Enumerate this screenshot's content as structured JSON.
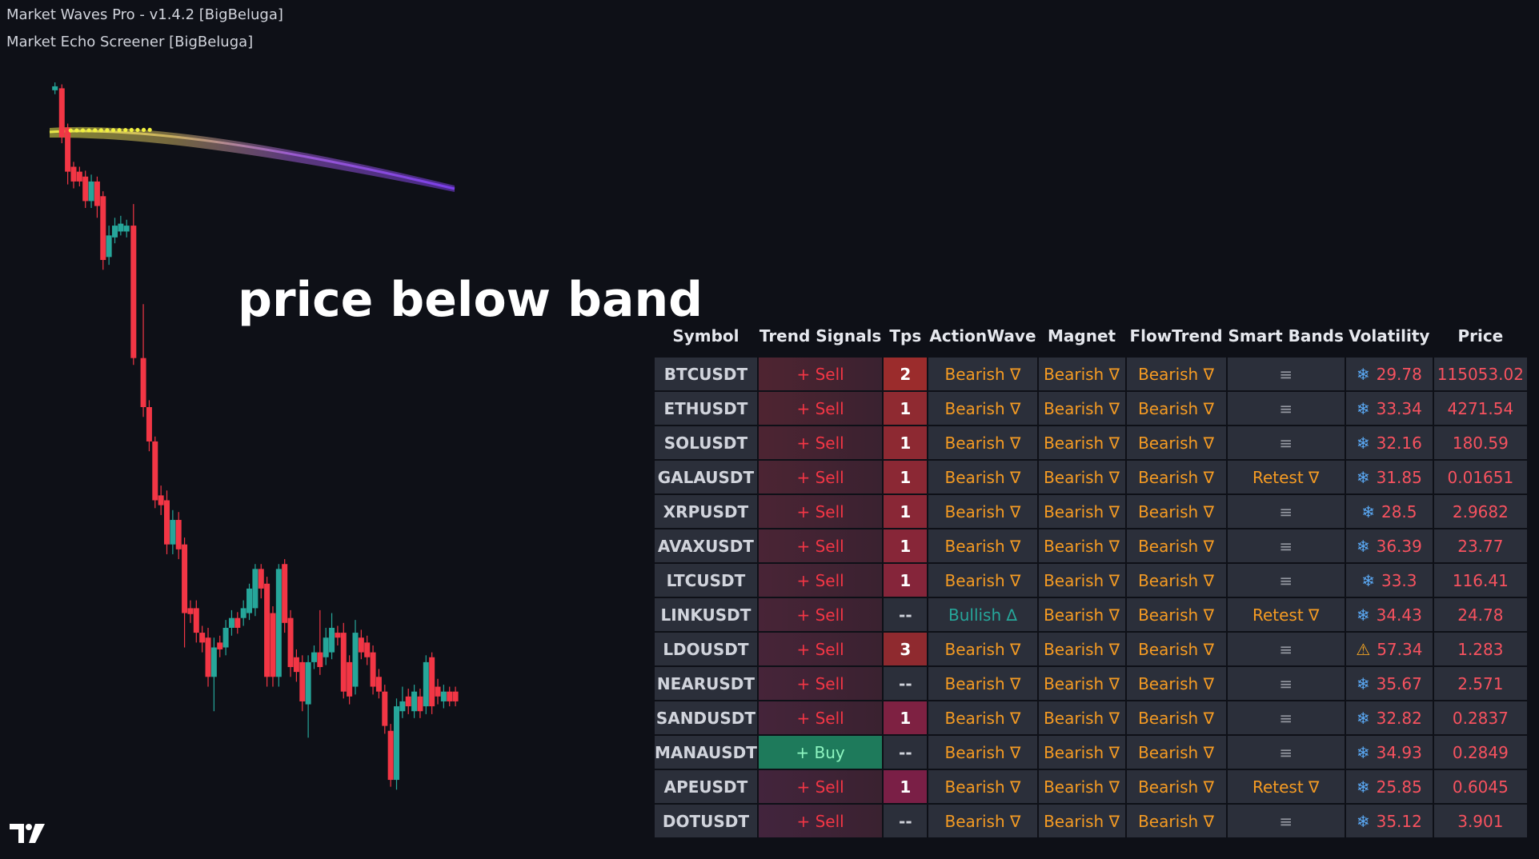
{
  "header": {
    "lines": [
      "Market Waves Pro - v1.4.2 [BigBeluga]",
      "Market Echo Screener [BigBeluga]"
    ]
  },
  "annotation": "price below band",
  "table": {
    "columns": [
      "Symbol",
      "Trend Signals",
      "Tps",
      "ActionWave",
      "Magnet",
      "FlowTrend",
      "Smart Bands",
      "Volatility",
      "Price"
    ],
    "rows": [
      {
        "cells": [
          "BTCUSDT",
          "+ Sell",
          "2",
          "Bearish ∇",
          "Bearish ∇",
          "Bearish ∇",
          "≡",
          "❄",
          "29.78",
          "115053.02"
        ],
        "signal_fill": "#4f2431",
        "tps_fill": "#9b2c2c",
        "colors": [
          "#d1d4dc",
          "#f23645",
          "#fff",
          "#f59b23",
          "#f59b23",
          "#f59b23",
          "#9598a1",
          "#5aa9f5",
          "#f7525f",
          "#f7525f"
        ]
      },
      {
        "cells": [
          "ETHUSDT",
          "+ Sell",
          "1",
          "Bearish ∇",
          "Bearish ∇",
          "Bearish ∇",
          "≡",
          "❄",
          "33.34",
          "4271.54"
        ],
        "signal_fill": "#4f2431",
        "tps_fill": "#8f2a31",
        "colors": [
          "#d1d4dc",
          "#f23645",
          "#fff",
          "#f59b23",
          "#f59b23",
          "#f59b23",
          "#9598a1",
          "#5aa9f5",
          "#f7525f",
          "#f7525f"
        ]
      },
      {
        "cells": [
          "SOLUSDT",
          "+ Sell",
          "1",
          "Bearish ∇",
          "Bearish ∇",
          "Bearish ∇",
          "≡",
          "❄",
          "32.16",
          "180.59"
        ],
        "signal_fill": "#4d2432",
        "tps_fill": "#8d2932",
        "colors": [
          "#d1d4dc",
          "#f23645",
          "#fff",
          "#f59b23",
          "#f59b23",
          "#f59b23",
          "#9598a1",
          "#5aa9f5",
          "#f7525f",
          "#f7525f"
        ]
      },
      {
        "cells": [
          "GALAUSDT",
          "+ Sell",
          "1",
          "Bearish ∇",
          "Bearish ∇",
          "Bearish ∇",
          "Retest ∇",
          "❄",
          "31.85",
          "0.01651"
        ],
        "signal_fill": "#4c2433",
        "tps_fill": "#8b2834",
        "colors": [
          "#d1d4dc",
          "#f23645",
          "#fff",
          "#f59b23",
          "#f59b23",
          "#f59b23",
          "#f59b23",
          "#5aa9f5",
          "#f7525f",
          "#f7525f"
        ]
      },
      {
        "cells": [
          "XRPUSDT",
          "+ Sell",
          "1",
          "Bearish ∇",
          "Bearish ∇",
          "Bearish ∇",
          "≡",
          "❄",
          "28.5",
          "2.9682"
        ],
        "signal_fill": "#4b2434",
        "tps_fill": "#892736",
        "colors": [
          "#d1d4dc",
          "#f23645",
          "#fff",
          "#f59b23",
          "#f59b23",
          "#f59b23",
          "#9598a1",
          "#5aa9f5",
          "#f7525f",
          "#f7525f"
        ]
      },
      {
        "cells": [
          "AVAXUSDT",
          "+ Sell",
          "1",
          "Bearish ∇",
          "Bearish ∇",
          "Bearish ∇",
          "≡",
          "❄",
          "36.39",
          "23.77"
        ],
        "signal_fill": "#4a2435",
        "tps_fill": "#872638",
        "colors": [
          "#d1d4dc",
          "#f23645",
          "#fff",
          "#f59b23",
          "#f59b23",
          "#f59b23",
          "#9598a1",
          "#5aa9f5",
          "#f7525f",
          "#f7525f"
        ]
      },
      {
        "cells": [
          "LTCUSDT",
          "+ Sell",
          "1",
          "Bearish ∇",
          "Bearish ∇",
          "Bearish ∇",
          "≡",
          "❄",
          "33.3",
          "116.41"
        ],
        "signal_fill": "#492436",
        "tps_fill": "#85253a",
        "colors": [
          "#d1d4dc",
          "#f23645",
          "#fff",
          "#f59b23",
          "#f59b23",
          "#f59b23",
          "#9598a1",
          "#5aa9f5",
          "#f7525f",
          "#f7525f"
        ]
      },
      {
        "cells": [
          "LINKUSDT",
          "+ Sell",
          "--",
          "Bullish ∆",
          "Bearish ∇",
          "Bearish ∇",
          "Retest ∇",
          "❄",
          "34.43",
          "24.78"
        ],
        "signal_fill": "#482437",
        "tps_fill": "#2b2f3a",
        "colors": [
          "#d1d4dc",
          "#f23645",
          "#d1d4dc",
          "#26a69a",
          "#f59b23",
          "#f59b23",
          "#f59b23",
          "#5aa9f5",
          "#f7525f",
          "#f7525f"
        ]
      },
      {
        "cells": [
          "LDOUSDT",
          "+ Sell",
          "3",
          "Bearish ∇",
          "Bearish ∇",
          "Bearish ∇",
          "≡",
          "⚠",
          "57.34",
          "1.283"
        ],
        "signal_fill": "#472438",
        "tps_fill": "#8f2a2f",
        "colors": [
          "#d1d4dc",
          "#f23645",
          "#fff",
          "#f59b23",
          "#f59b23",
          "#f59b23",
          "#9598a1",
          "#f5a623",
          "#f7525f",
          "#f7525f"
        ]
      },
      {
        "cells": [
          "NEARUSDT",
          "+ Sell",
          "--",
          "Bearish ∇",
          "Bearish ∇",
          "Bearish ∇",
          "≡",
          "❄",
          "35.67",
          "2.571"
        ],
        "signal_fill": "#462439",
        "tps_fill": "#2b2f3a",
        "colors": [
          "#d1d4dc",
          "#f23645",
          "#d1d4dc",
          "#f59b23",
          "#f59b23",
          "#f59b23",
          "#9598a1",
          "#5aa9f5",
          "#f7525f",
          "#f7525f"
        ]
      },
      {
        "cells": [
          "SANDUSDT",
          "+ Sell",
          "1",
          "Bearish ∇",
          "Bearish ∇",
          "Bearish ∇",
          "≡",
          "❄",
          "32.82",
          "0.2837"
        ],
        "signal_fill": "#45243a",
        "tps_fill": "#7e2142",
        "colors": [
          "#d1d4dc",
          "#f23645",
          "#fff",
          "#f59b23",
          "#f59b23",
          "#f59b23",
          "#9598a1",
          "#5aa9f5",
          "#f7525f",
          "#f7525f"
        ]
      },
      {
        "cells": [
          "MANAUSDT",
          "+ Buy",
          "--",
          "Bearish ∇",
          "Bearish ∇",
          "Bearish ∇",
          "≡",
          "❄",
          "34.93",
          "0.2849"
        ],
        "signal_fill": "#1e7a5b",
        "tps_fill": "#2b2f3a",
        "colors": [
          "#d1d4dc",
          "#8ef5c0",
          "#d1d4dc",
          "#f59b23",
          "#f59b23",
          "#f59b23",
          "#9598a1",
          "#5aa9f5",
          "#f7525f",
          "#f7525f"
        ]
      },
      {
        "cells": [
          "APEUSDT",
          "+ Sell",
          "1",
          "Bearish ∇",
          "Bearish ∇",
          "Bearish ∇",
          "Retest ∇",
          "❄",
          "25.85",
          "0.6045"
        ],
        "signal_fill": "#43243c",
        "tps_fill": "#7a1f46",
        "colors": [
          "#d1d4dc",
          "#f23645",
          "#fff",
          "#f59b23",
          "#f59b23",
          "#f59b23",
          "#f59b23",
          "#5aa9f5",
          "#f7525f",
          "#f7525f"
        ]
      },
      {
        "cells": [
          "DOTUSDT",
          "+ Sell",
          "--",
          "Bearish ∇",
          "Bearish ∇",
          "Bearish ∇",
          "≡",
          "❄",
          "35.12",
          "3.901"
        ],
        "signal_fill": "#42243d",
        "tps_fill": "#2b2f3a",
        "colors": [
          "#d1d4dc",
          "#f23645",
          "#d1d4dc",
          "#f59b23",
          "#f59b23",
          "#f59b23",
          "#9598a1",
          "#5aa9f5",
          "#f7525f",
          "#f7525f"
        ]
      }
    ]
  }
}
